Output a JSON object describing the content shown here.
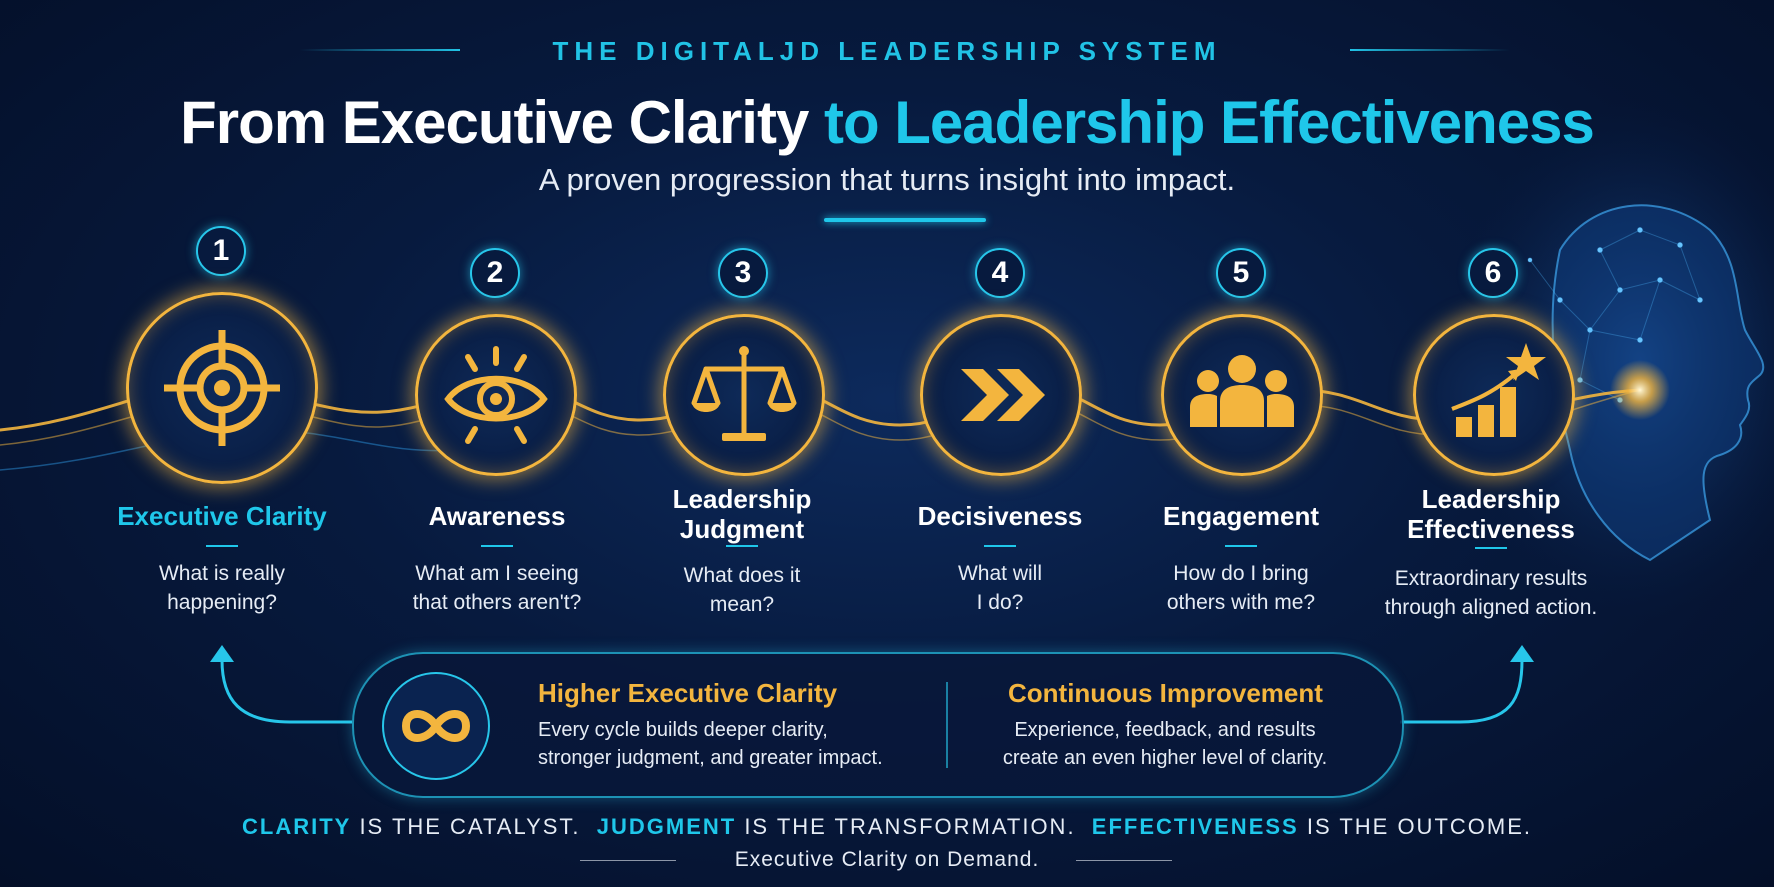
{
  "header": {
    "eyebrow": "THE DIGITALJD LEADERSHIP SYSTEM",
    "title_part1": "From Executive Clarity",
    "title_part2": "to Leadership Effectiveness",
    "subtitle": "A proven progression that turns insight into impact."
  },
  "colors": {
    "accent": "#1fc7ea",
    "gold": "#f3b53e",
    "background": "#071a3e"
  },
  "steps": [
    {
      "number": "1",
      "title": "Executive Clarity",
      "question_l1": "What is really",
      "question_l2": "happening?",
      "icon": "target-icon"
    },
    {
      "number": "2",
      "title": "Awareness",
      "question_l1": "What am I seeing",
      "question_l2": "that others aren't?",
      "icon": "eye-icon"
    },
    {
      "number": "3",
      "title_l1": "Leadership",
      "title_l2": "Judgment",
      "question_l1": "What does it",
      "question_l2": "mean?",
      "icon": "scales-icon"
    },
    {
      "number": "4",
      "title": "Decisiveness",
      "question_l1": "What will",
      "question_l2": "I do?",
      "icon": "double-chevron-icon"
    },
    {
      "number": "5",
      "title": "Engagement",
      "question_l1": "How do I bring",
      "question_l2": "others with me?",
      "icon": "people-icon"
    },
    {
      "number": "6",
      "title_l1": "Leadership",
      "title_l2": "Effectiveness",
      "question_l1": "Extraordinary results",
      "question_l2": "through aligned action.",
      "icon": "growth-chart-star-icon"
    }
  ],
  "loop": {
    "icon": "infinity-icon",
    "left_title": "Higher Executive Clarity",
    "left_l1": "Every cycle builds deeper clarity,",
    "left_l2": "stronger judgment, and greater impact.",
    "right_title": "Continuous Improvement",
    "right_l1": "Experience, feedback, and results",
    "right_l2": "create an even higher level of clarity."
  },
  "tagline": {
    "w1": "CLARITY",
    "t1": " IS THE CATALYST.  ",
    "w2": "JUDGMENT",
    "t2": " IS THE TRANSFORMATION.  ",
    "w3": "EFFECTIVENESS",
    "t3": " IS THE OUTCOME."
  },
  "footer": "Executive Clarity on Demand."
}
